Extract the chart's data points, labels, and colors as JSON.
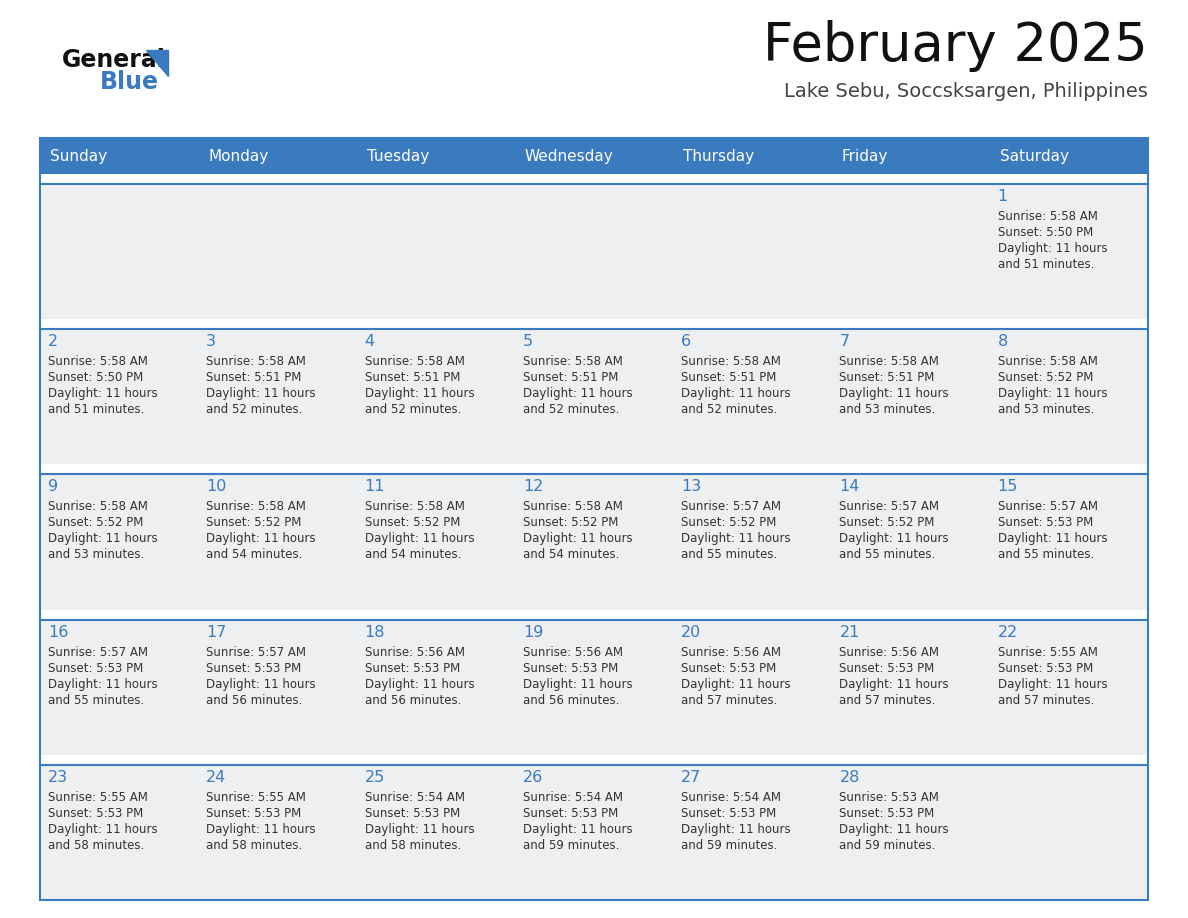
{
  "title": "February 2025",
  "subtitle": "Lake Sebu, Soccsksargen, Philippines",
  "days_of_week": [
    "Sunday",
    "Monday",
    "Tuesday",
    "Wednesday",
    "Thursday",
    "Friday",
    "Saturday"
  ],
  "header_bg": "#3a7abf",
  "header_text": "#ffffff",
  "cell_bg": "#eeeff0",
  "cell_bg_white": "#ffffff",
  "sep_color": "#3a7abf",
  "day_num_color": "#3a7abf",
  "info_text_color": "#333333",
  "title_color": "#111111",
  "subtitle_color": "#444444",
  "logo_general_color": "#111111",
  "logo_blue_color": "#3a7abf",
  "logo_triangle_color": "#3a7abf",
  "calendar_data": [
    [
      null,
      null,
      null,
      null,
      null,
      null,
      {
        "day": 1,
        "sunrise": "5:58 AM",
        "sunset": "5:50 PM",
        "daylight": "11 hours and 51 minutes."
      }
    ],
    [
      {
        "day": 2,
        "sunrise": "5:58 AM",
        "sunset": "5:50 PM",
        "daylight": "11 hours and 51 minutes."
      },
      {
        "day": 3,
        "sunrise": "5:58 AM",
        "sunset": "5:51 PM",
        "daylight": "11 hours and 52 minutes."
      },
      {
        "day": 4,
        "sunrise": "5:58 AM",
        "sunset": "5:51 PM",
        "daylight": "11 hours and 52 minutes."
      },
      {
        "day": 5,
        "sunrise": "5:58 AM",
        "sunset": "5:51 PM",
        "daylight": "11 hours and 52 minutes."
      },
      {
        "day": 6,
        "sunrise": "5:58 AM",
        "sunset": "5:51 PM",
        "daylight": "11 hours and 52 minutes."
      },
      {
        "day": 7,
        "sunrise": "5:58 AM",
        "sunset": "5:51 PM",
        "daylight": "11 hours and 53 minutes."
      },
      {
        "day": 8,
        "sunrise": "5:58 AM",
        "sunset": "5:52 PM",
        "daylight": "11 hours and 53 minutes."
      }
    ],
    [
      {
        "day": 9,
        "sunrise": "5:58 AM",
        "sunset": "5:52 PM",
        "daylight": "11 hours and 53 minutes."
      },
      {
        "day": 10,
        "sunrise": "5:58 AM",
        "sunset": "5:52 PM",
        "daylight": "11 hours and 54 minutes."
      },
      {
        "day": 11,
        "sunrise": "5:58 AM",
        "sunset": "5:52 PM",
        "daylight": "11 hours and 54 minutes."
      },
      {
        "day": 12,
        "sunrise": "5:58 AM",
        "sunset": "5:52 PM",
        "daylight": "11 hours and 54 minutes."
      },
      {
        "day": 13,
        "sunrise": "5:57 AM",
        "sunset": "5:52 PM",
        "daylight": "11 hours and 55 minutes."
      },
      {
        "day": 14,
        "sunrise": "5:57 AM",
        "sunset": "5:52 PM",
        "daylight": "11 hours and 55 minutes."
      },
      {
        "day": 15,
        "sunrise": "5:57 AM",
        "sunset": "5:53 PM",
        "daylight": "11 hours and 55 minutes."
      }
    ],
    [
      {
        "day": 16,
        "sunrise": "5:57 AM",
        "sunset": "5:53 PM",
        "daylight": "11 hours and 55 minutes."
      },
      {
        "day": 17,
        "sunrise": "5:57 AM",
        "sunset": "5:53 PM",
        "daylight": "11 hours and 56 minutes."
      },
      {
        "day": 18,
        "sunrise": "5:56 AM",
        "sunset": "5:53 PM",
        "daylight": "11 hours and 56 minutes."
      },
      {
        "day": 19,
        "sunrise": "5:56 AM",
        "sunset": "5:53 PM",
        "daylight": "11 hours and 56 minutes."
      },
      {
        "day": 20,
        "sunrise": "5:56 AM",
        "sunset": "5:53 PM",
        "daylight": "11 hours and 57 minutes."
      },
      {
        "day": 21,
        "sunrise": "5:56 AM",
        "sunset": "5:53 PM",
        "daylight": "11 hours and 57 minutes."
      },
      {
        "day": 22,
        "sunrise": "5:55 AM",
        "sunset": "5:53 PM",
        "daylight": "11 hours and 57 minutes."
      }
    ],
    [
      {
        "day": 23,
        "sunrise": "5:55 AM",
        "sunset": "5:53 PM",
        "daylight": "11 hours and 58 minutes."
      },
      {
        "day": 24,
        "sunrise": "5:55 AM",
        "sunset": "5:53 PM",
        "daylight": "11 hours and 58 minutes."
      },
      {
        "day": 25,
        "sunrise": "5:54 AM",
        "sunset": "5:53 PM",
        "daylight": "11 hours and 58 minutes."
      },
      {
        "day": 26,
        "sunrise": "5:54 AM",
        "sunset": "5:53 PM",
        "daylight": "11 hours and 59 minutes."
      },
      {
        "day": 27,
        "sunrise": "5:54 AM",
        "sunset": "5:53 PM",
        "daylight": "11 hours and 59 minutes."
      },
      {
        "day": 28,
        "sunrise": "5:53 AM",
        "sunset": "5:53 PM",
        "daylight": "11 hours and 59 minutes."
      },
      null
    ]
  ]
}
